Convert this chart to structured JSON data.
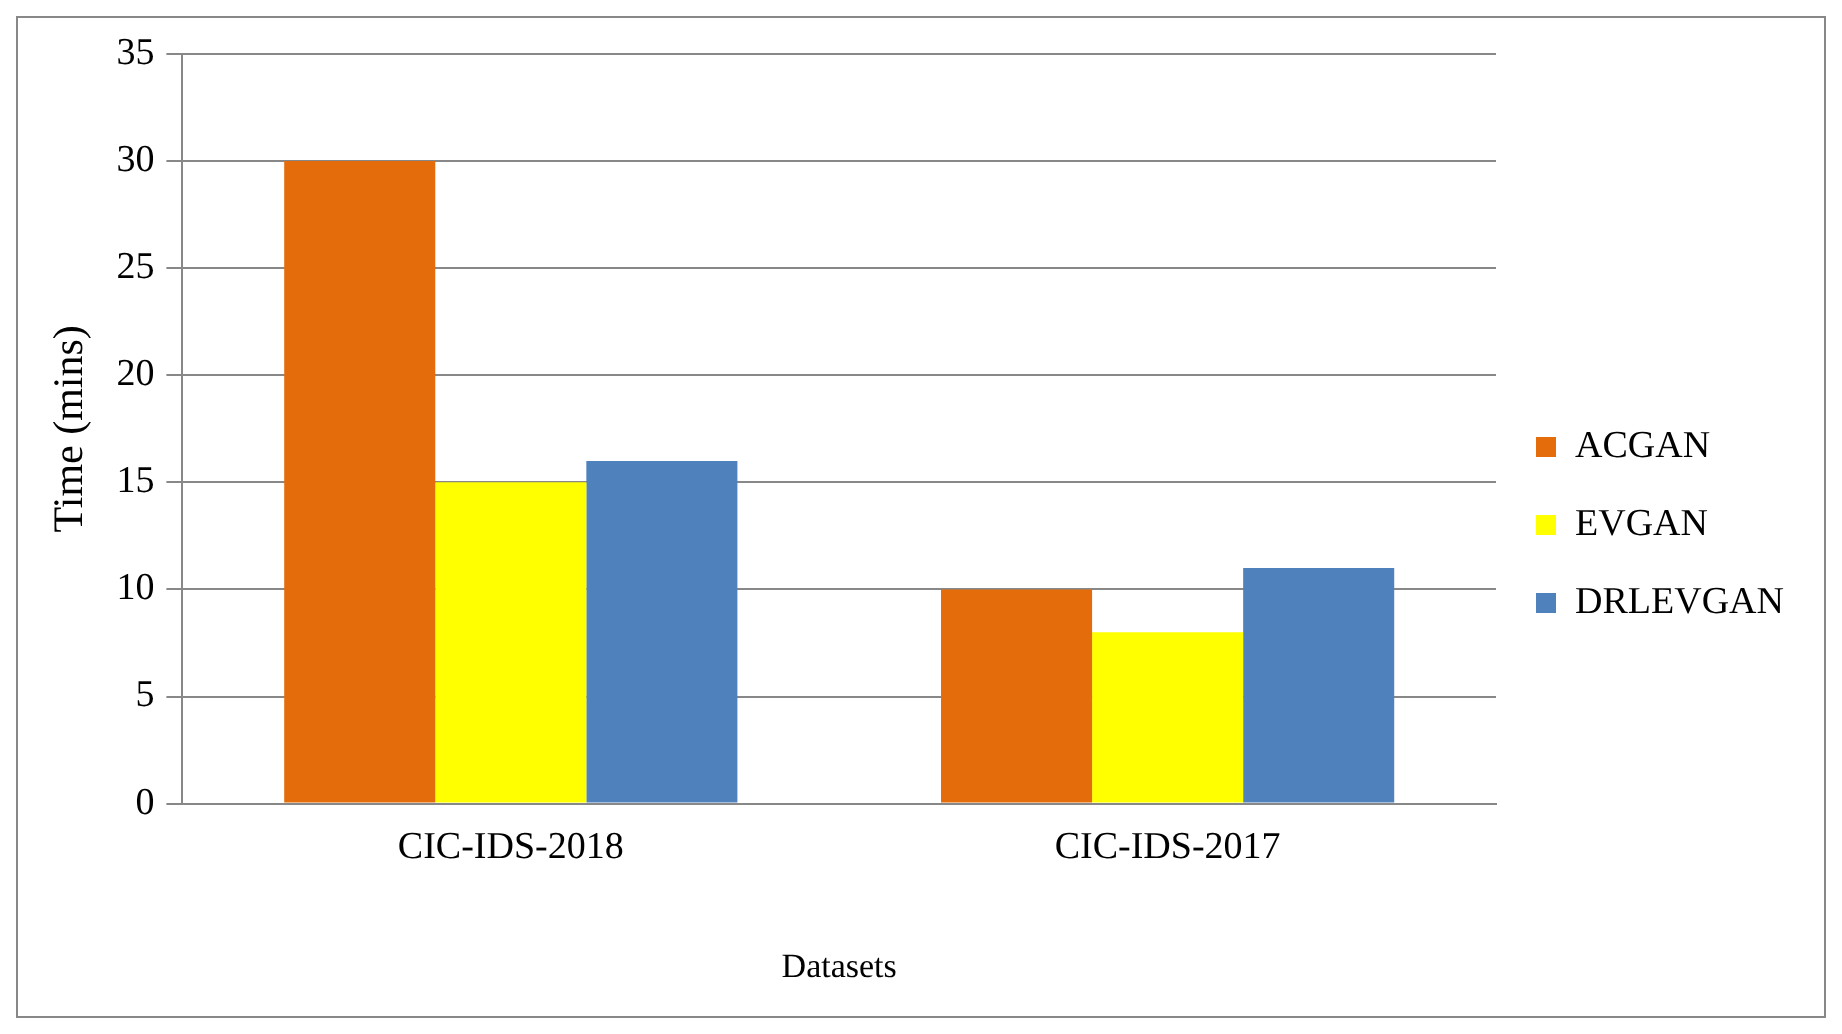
{
  "chart_data": {
    "type": "bar",
    "xlabel": "Datasets",
    "ylabel": "Time (mins)",
    "categories": [
      "CIC-IDS-2018",
      "CIC-IDS-2017"
    ],
    "series": [
      {
        "name": "ACGAN",
        "color": "#e46c0a",
        "values": [
          30,
          10
        ]
      },
      {
        "name": "EVGAN",
        "color": "#ffff00",
        "values": [
          15,
          8
        ]
      },
      {
        "name": "DRLEVGAN",
        "color": "#4f81bd",
        "values": [
          16,
          11
        ]
      }
    ],
    "ylim": [
      0,
      35
    ],
    "yticks": [
      0,
      5,
      10,
      15,
      20,
      25,
      30,
      35
    ],
    "grid": "y",
    "legend": "right"
  }
}
